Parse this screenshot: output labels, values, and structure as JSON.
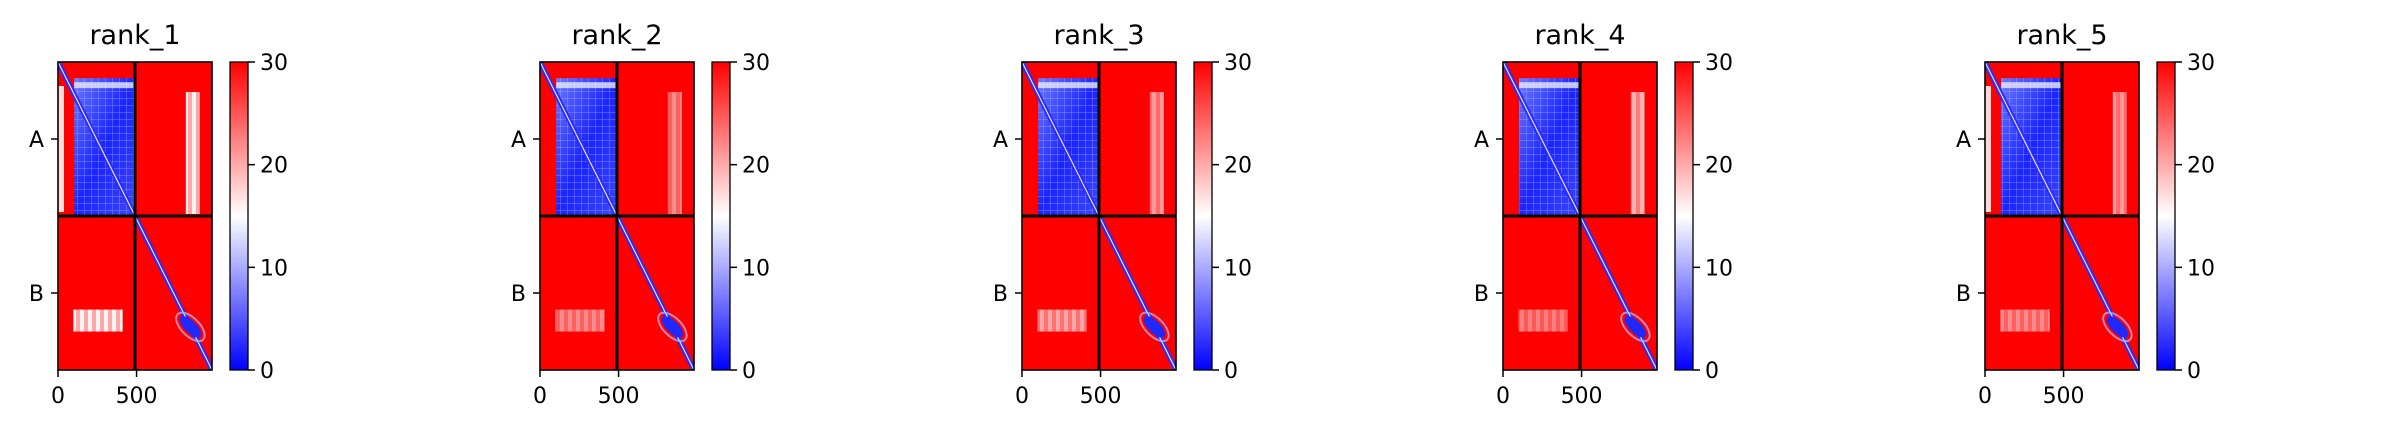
{
  "chart_data": [
    {
      "type": "heatmap",
      "title": "rank_1",
      "ytick_labels": [
        "A",
        "B"
      ],
      "xticks": [
        0,
        500
      ],
      "xlim": [
        0,
        980
      ],
      "block_boundary": 490,
      "colorbar": {
        "ticks": [
          0,
          10,
          20,
          30
        ],
        "vmin": 0,
        "vmax": 30
      },
      "cmap": [
        "#0000ff",
        "#ffffff",
        "#ff0000"
      ],
      "colors": {
        "axes": "#000000",
        "background": "#ffffff"
      },
      "variant": 1
    },
    {
      "type": "heatmap",
      "title": "rank_2",
      "ytick_labels": [
        "A",
        "B"
      ],
      "xticks": [
        0,
        500
      ],
      "xlim": [
        0,
        980
      ],
      "block_boundary": 490,
      "colorbar": {
        "ticks": [
          0,
          10,
          20,
          30
        ],
        "vmin": 0,
        "vmax": 30
      },
      "cmap": [
        "#0000ff",
        "#ffffff",
        "#ff0000"
      ],
      "colors": {
        "axes": "#000000",
        "background": "#ffffff"
      },
      "variant": 2
    },
    {
      "type": "heatmap",
      "title": "rank_3",
      "ytick_labels": [
        "A",
        "B"
      ],
      "xticks": [
        0,
        500
      ],
      "xlim": [
        0,
        980
      ],
      "block_boundary": 490,
      "colorbar": {
        "ticks": [
          0,
          10,
          20,
          30
        ],
        "vmin": 0,
        "vmax": 30
      },
      "cmap": [
        "#0000ff",
        "#ffffff",
        "#ff0000"
      ],
      "colors": {
        "axes": "#000000",
        "background": "#ffffff"
      },
      "variant": 3
    },
    {
      "type": "heatmap",
      "title": "rank_4",
      "ytick_labels": [
        "A",
        "B"
      ],
      "xticks": [
        0,
        500
      ],
      "xlim": [
        0,
        980
      ],
      "block_boundary": 490,
      "colorbar": {
        "ticks": [
          0,
          10,
          20,
          30
        ],
        "vmin": 0,
        "vmax": 30
      },
      "cmap": [
        "#0000ff",
        "#ffffff",
        "#ff0000"
      ],
      "colors": {
        "axes": "#000000",
        "background": "#ffffff"
      },
      "variant": 4
    },
    {
      "type": "heatmap",
      "title": "rank_5",
      "ytick_labels": [
        "A",
        "B"
      ],
      "xticks": [
        0,
        500
      ],
      "xlim": [
        0,
        980
      ],
      "block_boundary": 490,
      "colorbar": {
        "ticks": [
          0,
          10,
          20,
          30
        ],
        "vmin": 0,
        "vmax": 30
      },
      "cmap": [
        "#0000ff",
        "#ffffff",
        "#ff0000"
      ],
      "colors": {
        "axes": "#000000",
        "background": "#ffffff"
      },
      "variant": 5
    }
  ]
}
